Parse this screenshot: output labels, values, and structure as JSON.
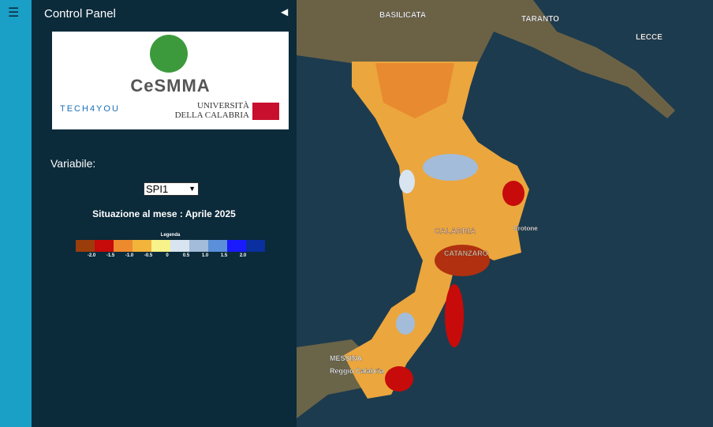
{
  "panel": {
    "title": "Control Panel",
    "variable_label": "Variabile:",
    "variable_selected": "SPI1",
    "situation": "Situazione al mese : Aprile 2025"
  },
  "logos": {
    "center": "CeSMMA",
    "tech": "TECH4YOU",
    "university": "UNIVERSITÀ DELLA CALABRIA"
  },
  "legend": {
    "title": "Legenda",
    "colors": [
      "#9b3d0b",
      "#c70a0a",
      "#ee8a2e",
      "#f2b43a",
      "#f7f38a",
      "#d8e4ef",
      "#a3bcd9",
      "#5b8fd9",
      "#1a1aff",
      "#0a2f9e"
    ],
    "labels": [
      "-2.0",
      "-1.5",
      "-1.0",
      "-0.5",
      "0",
      "0.5",
      "1.0",
      "1.5",
      "2.0"
    ]
  },
  "map_labels": [
    "BASILICATA",
    "TARANTO",
    "LECCE",
    "CALABRIA",
    "Crotone",
    "CATANZARO",
    "MESSINA",
    "Reggio Calabria"
  ]
}
